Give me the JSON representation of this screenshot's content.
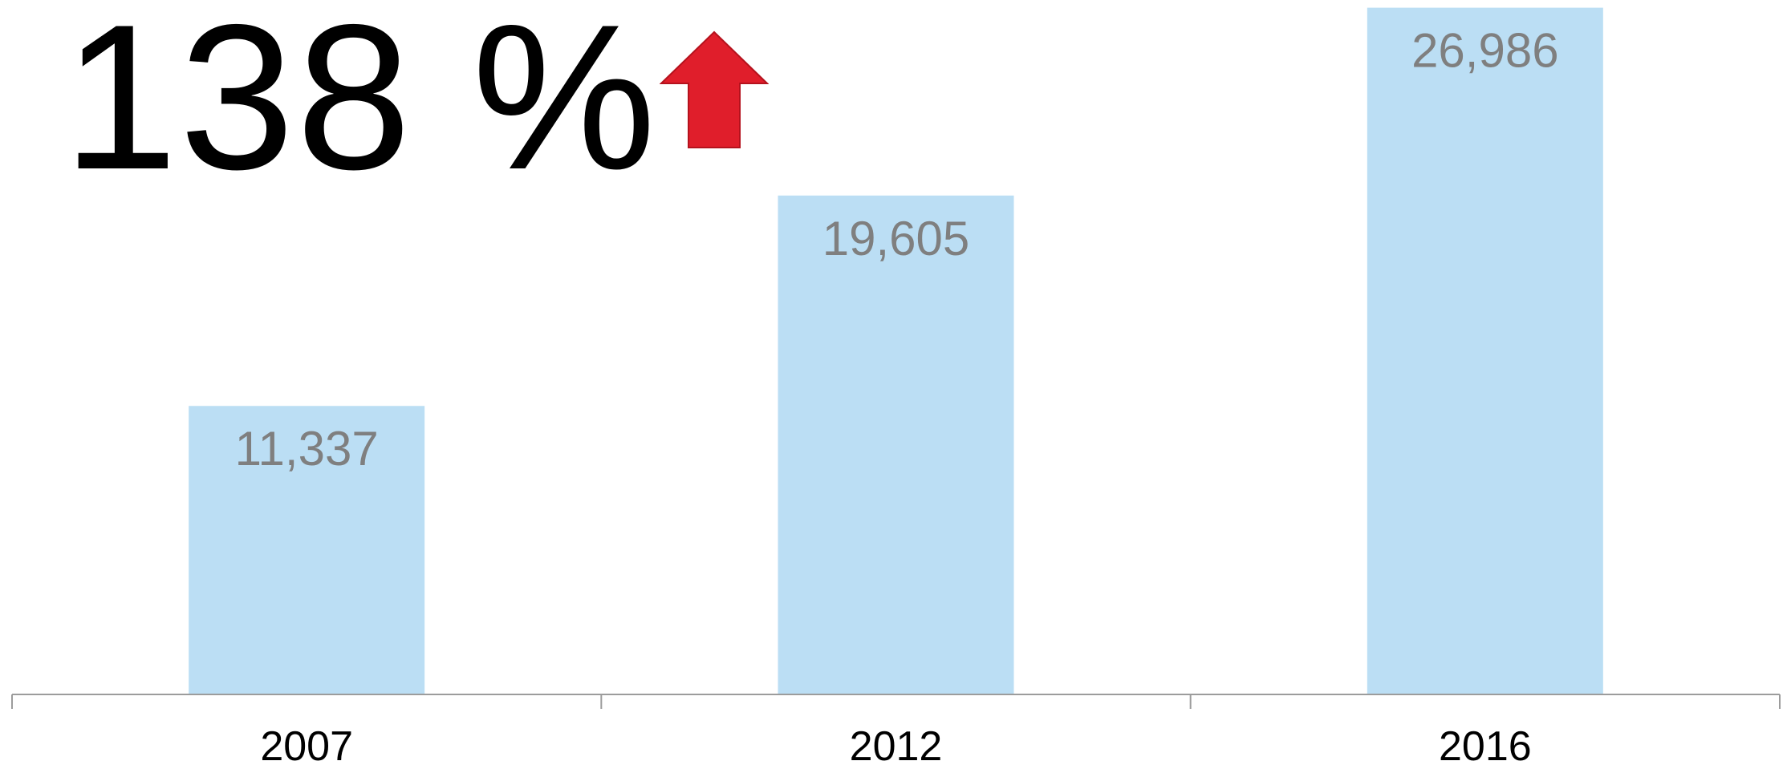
{
  "headline": {
    "change_text": "138 %",
    "direction_icon": "up-arrow-icon",
    "arrow_color": "#E01E2B",
    "arrow_border": "#B5121D"
  },
  "chart_data": {
    "type": "bar",
    "categories": [
      "2007",
      "2012",
      "2016"
    ],
    "values": [
      11337,
      19605,
      26986
    ],
    "value_labels": [
      "11,337",
      "19,605",
      "26,986"
    ],
    "title": "",
    "xlabel": "",
    "ylabel": "",
    "ylim": [
      0,
      27100
    ],
    "grid": false,
    "legend": "none",
    "bar_color": "#BBDEF4",
    "value_label_color": "#7F7F7F",
    "tick_label_color": "#000000",
    "axis_color": "#9C9C9C"
  }
}
